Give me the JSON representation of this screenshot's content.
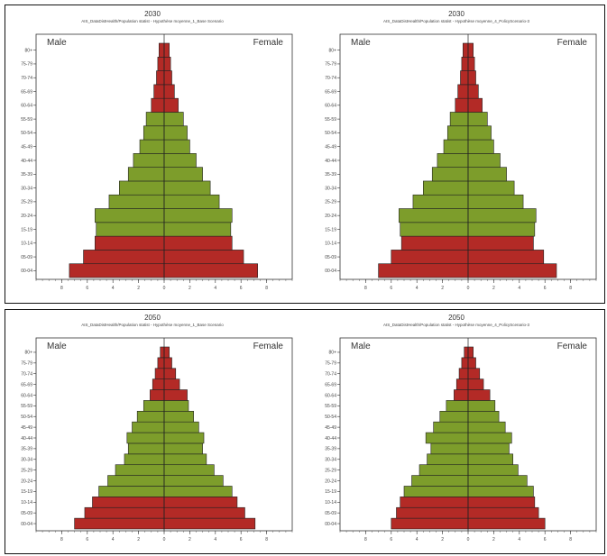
{
  "chart_data": [
    {
      "type": "bar",
      "title": "2030",
      "subtitle": "AIS_DataDistHealth/Population statist - Hypothèse moyenne_1_Base Scenario",
      "labels": {
        "male": "Male",
        "female": "Female"
      },
      "categories": [
        "00-04",
        "05-09",
        "10-14",
        "15-19",
        "20-24",
        "25-29",
        "30-34",
        "35-39",
        "40-44",
        "45-49",
        "50-54",
        "55-59",
        "60-64",
        "65-69",
        "70-74",
        "75-79",
        "80+"
      ],
      "xlim": [
        -10,
        10
      ],
      "xticks": [
        -8,
        -6,
        -4,
        -2,
        0,
        2,
        4,
        6,
        8
      ],
      "tick_labels": [
        "8",
        "6",
        "4",
        "2",
        "0",
        "2",
        "4",
        "6",
        "8"
      ],
      "male": [
        7.4,
        6.3,
        5.4,
        5.3,
        5.4,
        4.3,
        3.5,
        2.8,
        2.4,
        1.9,
        1.6,
        1.4,
        1.0,
        0.8,
        0.6,
        0.5,
        0.4
      ],
      "female": [
        7.3,
        6.2,
        5.3,
        5.2,
        5.3,
        4.3,
        3.6,
        3.0,
        2.5,
        2.0,
        1.8,
        1.5,
        1.1,
        0.8,
        0.6,
        0.5,
        0.4
      ],
      "colors": [
        "#b32a26",
        "#b32a26",
        "#b32a26",
        "#7d9d2b",
        "#7d9d2b",
        "#7d9d2b",
        "#7d9d2b",
        "#7d9d2b",
        "#7d9d2b",
        "#7d9d2b",
        "#7d9d2b",
        "#7d9d2b",
        "#b32a26",
        "#b32a26",
        "#b32a26",
        "#b32a26",
        "#b32a26"
      ]
    },
    {
      "type": "bar",
      "title": "2030",
      "subtitle": "AIS_DataDistHealth/Population statist - Hypothèse moyenne_4_PolicyScenario-3",
      "labels": {
        "male": "Male",
        "female": "Female"
      },
      "categories": [
        "00-04",
        "05-09",
        "10-14",
        "15-19",
        "20-24",
        "25-29",
        "30-34",
        "35-39",
        "40-44",
        "45-49",
        "50-54",
        "55-59",
        "60-64",
        "65-69",
        "70-74",
        "75-79",
        "80+"
      ],
      "xlim": [
        -10,
        10
      ],
      "xticks": [
        -8,
        -6,
        -4,
        -2,
        0,
        2,
        4,
        6,
        8
      ],
      "tick_labels": [
        "8",
        "6",
        "4",
        "2",
        "0",
        "2",
        "4",
        "6",
        "8"
      ],
      "male": [
        7.0,
        6.0,
        5.2,
        5.3,
        5.4,
        4.3,
        3.5,
        2.8,
        2.4,
        1.9,
        1.6,
        1.4,
        1.0,
        0.8,
        0.6,
        0.5,
        0.4
      ],
      "female": [
        6.9,
        5.9,
        5.1,
        5.2,
        5.3,
        4.3,
        3.6,
        3.0,
        2.5,
        2.0,
        1.8,
        1.5,
        1.1,
        0.8,
        0.6,
        0.5,
        0.4
      ],
      "colors": [
        "#b32a26",
        "#b32a26",
        "#b32a26",
        "#7d9d2b",
        "#7d9d2b",
        "#7d9d2b",
        "#7d9d2b",
        "#7d9d2b",
        "#7d9d2b",
        "#7d9d2b",
        "#7d9d2b",
        "#7d9d2b",
        "#b32a26",
        "#b32a26",
        "#b32a26",
        "#b32a26",
        "#b32a26"
      ]
    },
    {
      "type": "bar",
      "title": "2050",
      "subtitle": "AIS_DataDistHealth/Population statist - Hypothèse moyenne_1_Base Scenario",
      "labels": {
        "male": "Male",
        "female": "Female"
      },
      "categories": [
        "00-04",
        "05-09",
        "10-14",
        "15-19",
        "20-24",
        "25-29",
        "30-34",
        "35-39",
        "40-44",
        "45-49",
        "50-54",
        "55-59",
        "60-64",
        "65-69",
        "70-74",
        "75-79",
        "80+"
      ],
      "xlim": [
        -10,
        10
      ],
      "xticks": [
        -8,
        -6,
        -4,
        -2,
        0,
        2,
        4,
        6,
        8
      ],
      "tick_labels": [
        "8",
        "6",
        "4",
        "2",
        "0",
        "2",
        "4",
        "6",
        "8"
      ],
      "male": [
        7.0,
        6.2,
        5.6,
        5.1,
        4.4,
        3.8,
        3.1,
        2.8,
        2.9,
        2.5,
        2.1,
        1.6,
        1.1,
        0.9,
        0.7,
        0.5,
        0.3
      ],
      "female": [
        7.1,
        6.3,
        5.7,
        5.3,
        4.6,
        3.9,
        3.3,
        3.0,
        3.1,
        2.7,
        2.3,
        1.9,
        1.8,
        1.2,
        0.9,
        0.6,
        0.4
      ],
      "colors": [
        "#b32a26",
        "#b32a26",
        "#b32a26",
        "#7d9d2b",
        "#7d9d2b",
        "#7d9d2b",
        "#7d9d2b",
        "#7d9d2b",
        "#7d9d2b",
        "#7d9d2b",
        "#7d9d2b",
        "#7d9d2b",
        "#b32a26",
        "#b32a26",
        "#b32a26",
        "#b32a26",
        "#b32a26"
      ]
    },
    {
      "type": "bar",
      "title": "2050",
      "subtitle": "AIS_DataDistHealth/Population statist - Hypothèse moyenne_4_PolicyScenario-3",
      "labels": {
        "male": "Male",
        "female": "Female"
      },
      "categories": [
        "00-04",
        "05-09",
        "10-14",
        "15-19",
        "20-24",
        "25-29",
        "30-34",
        "35-39",
        "40-44",
        "45-49",
        "50-54",
        "55-59",
        "60-64",
        "65-69",
        "70-74",
        "75-79",
        "80+"
      ],
      "xlim": [
        -10,
        10
      ],
      "xticks": [
        -8,
        -6,
        -4,
        -2,
        0,
        2,
        4,
        6,
        8
      ],
      "tick_labels": [
        "8",
        "6",
        "4",
        "2",
        "0",
        "2",
        "4",
        "6",
        "8"
      ],
      "male": [
        6.0,
        5.6,
        5.3,
        5.0,
        4.4,
        3.8,
        3.2,
        2.9,
        3.3,
        2.7,
        2.2,
        1.7,
        1.1,
        0.9,
        0.7,
        0.5,
        0.3
      ],
      "female": [
        6.0,
        5.5,
        5.2,
        5.1,
        4.6,
        3.9,
        3.5,
        3.2,
        3.4,
        2.9,
        2.4,
        2.1,
        1.7,
        1.2,
        0.9,
        0.6,
        0.4
      ],
      "colors": [
        "#b32a26",
        "#b32a26",
        "#b32a26",
        "#7d9d2b",
        "#7d9d2b",
        "#7d9d2b",
        "#7d9d2b",
        "#7d9d2b",
        "#7d9d2b",
        "#7d9d2b",
        "#7d9d2b",
        "#7d9d2b",
        "#b32a26",
        "#b32a26",
        "#b32a26",
        "#b32a26",
        "#b32a26"
      ]
    }
  ]
}
